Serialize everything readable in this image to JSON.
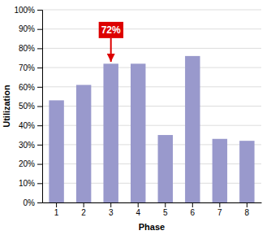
{
  "chart_data": {
    "type": "bar",
    "x_label": "Phase",
    "y_label": "Utilization",
    "categories": [
      "1",
      "2",
      "3",
      "4",
      "5",
      "6",
      "7",
      "8"
    ],
    "values": [
      0.53,
      0.61,
      0.72,
      0.72,
      0.35,
      0.76,
      0.33,
      0.32
    ],
    "color": "#9999cc",
    "ylim": [
      0,
      1.0
    ],
    "yticks": [
      {
        "value": 0.0,
        "label": "0%"
      },
      {
        "value": 0.1,
        "label": "10%"
      },
      {
        "value": 0.2,
        "label": "20%"
      },
      {
        "value": 0.3,
        "label": "30%"
      },
      {
        "value": 0.4,
        "label": "40%"
      },
      {
        "value": 0.5,
        "label": "50%"
      },
      {
        "value": 0.6,
        "label": "60%"
      },
      {
        "value": 0.7,
        "label": "70%"
      },
      {
        "value": 0.8,
        "label": "80%"
      },
      {
        "value": 0.9,
        "label": "90%"
      },
      {
        "value": 1.0,
        "label": "100%"
      }
    ],
    "grid": true,
    "annotations": [
      {
        "text": "72%",
        "category": "3",
        "y": 0.895,
        "arrow_y": 0.73,
        "color": "#dd0000"
      }
    ]
  }
}
